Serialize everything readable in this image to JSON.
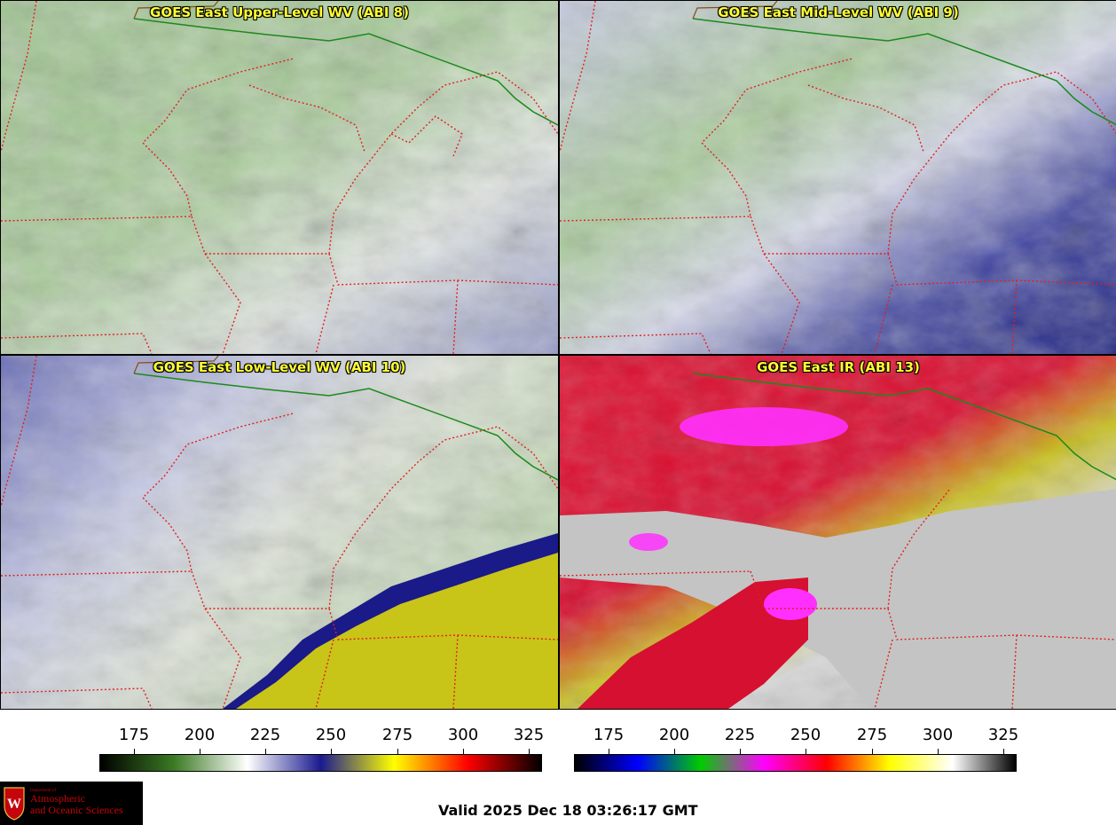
{
  "panels": {
    "upper": {
      "title": "GOES East Upper-Level WV (ABI 8)"
    },
    "mid": {
      "title": "GOES East Mid-Level WV (ABI 9)"
    },
    "low": {
      "title": "GOES East Low-Level WV (ABI 10)"
    },
    "ir": {
      "title": "GOES East IR (ABI 13)"
    }
  },
  "wv_scale": {
    "ticks": [
      "175",
      "200",
      "225",
      "250",
      "275",
      "300",
      "325"
    ],
    "colors": [
      "#000000",
      "#3a7a22",
      "#ffffff",
      "#1a1a90",
      "#ffff00",
      "#ff0000",
      "#000000"
    ]
  },
  "ir_scale": {
    "ticks": [
      "175",
      "200",
      "225",
      "250",
      "275",
      "300",
      "325"
    ],
    "colors": [
      "#000000",
      "#0000ff",
      "#00cc00",
      "#ff00ff",
      "#ff0000",
      "#ffff00",
      "#ffffff",
      "#000000"
    ]
  },
  "logo": {
    "department": "Department of",
    "line1": "Atmospheric",
    "line2": "and Oceanic Sciences"
  },
  "footer": {
    "valid_text": "Valid 2025 Dec 18 03:26:17 GMT"
  }
}
